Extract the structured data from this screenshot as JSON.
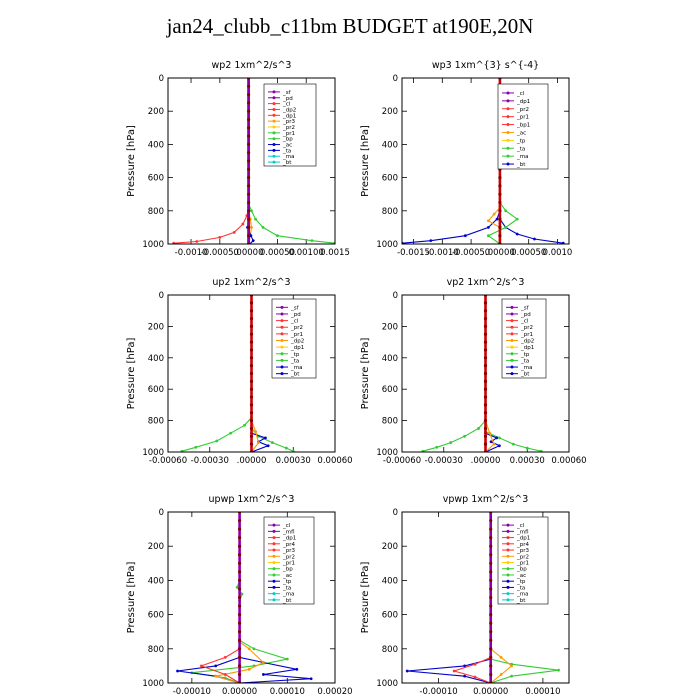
{
  "figure_title": "jan24_clubb_c11bm  BUDGET at190E,20N",
  "chart_data": [
    {
      "type": "line",
      "title": "wp2   1xm^2/s^3",
      "ylabel": "Pressure [hPa]",
      "xlim": [
        -0.0014,
        0.0015
      ],
      "ylim": [
        1000,
        0
      ],
      "xticks": [
        -0.001,
        -0.0005,
        0,
        0.0005,
        0.001,
        0.0015
      ],
      "xtick_labels": [
        "-0.0010",
        "-0.00050",
        ".00000",
        "0.00050",
        "0.00100",
        "0.0015"
      ],
      "yticks": [
        0,
        200,
        400,
        600,
        800,
        1000
      ],
      "legend": [
        "_sf",
        "_pd",
        "_cl",
        "_dp2",
        "_dp1",
        "_pr3",
        "_pr2",
        "_pr1",
        "_bp",
        "_ac",
        "_ta",
        "_ma",
        "_bt"
      ],
      "series": [
        {
          "name": "_bp",
          "color": "#33cc33",
          "x": [
            0,
            0,
            5e-05,
            0.00012,
            0.00025,
            0.0005,
            0.0011,
            0.0015
          ],
          "y": [
            0,
            760,
            800,
            850,
            900,
            950,
            980,
            995
          ]
        },
        {
          "name": "_dp1",
          "color": "#ff3333",
          "x": [
            0,
            0,
            -3e-05,
            -0.0001,
            -0.00025,
            -0.0005,
            -0.0009,
            -0.0013
          ],
          "y": [
            0,
            780,
            830,
            880,
            930,
            960,
            985,
            995
          ]
        },
        {
          "name": "_pr1",
          "color": "#ff9900",
          "x": [
            0,
            0,
            3e-05,
            5e-05,
            3e-05,
            0
          ],
          "y": [
            0,
            800,
            850,
            900,
            950,
            1000
          ]
        },
        {
          "name": "_ac",
          "color": "#0000cc",
          "x": [
            0,
            0,
            -2e-05,
            4e-05,
            8e-05,
            2e-05
          ],
          "y": [
            0,
            850,
            900,
            950,
            980,
            1000
          ]
        },
        {
          "name": "_cl",
          "color": "#cc0000",
          "x": [
            0,
            0
          ],
          "y": [
            0,
            1000
          ]
        },
        {
          "name": "_sf",
          "color": "#8800aa",
          "x": [
            0,
            0
          ],
          "y": [
            0,
            1000
          ]
        }
      ]
    },
    {
      "type": "line",
      "title": "wp3   1xm^{3} s^{-4}",
      "ylabel": "Pressure [hPa]",
      "xlim": [
        -0.0017,
        0.0012
      ],
      "ylim": [
        1000,
        0
      ],
      "xticks": [
        -0.0015,
        -0.001,
        -0.0005,
        0,
        0.0005,
        0.001
      ],
      "xtick_labels": [
        "-0.0015",
        "-0.0010",
        "-0.00050",
        ".00000",
        "0.00050",
        "0.0010"
      ],
      "yticks": [
        0,
        200,
        400,
        600,
        800,
        1000
      ],
      "legend": [
        "_cl",
        "_dp1",
        "_pr2",
        "_pr1",
        "_bp1",
        "_ac",
        "_tp",
        "_ta",
        "_ma",
        "_bt"
      ],
      "series": [
        {
          "name": "_ta",
          "color": "#0000cc",
          "x": [
            0,
            0,
            -5e-05,
            -0.0002,
            -0.0006,
            -0.0012,
            -0.0017
          ],
          "y": [
            0,
            800,
            850,
            900,
            950,
            980,
            995
          ]
        },
        {
          "name": "_tp",
          "color": "#0000cc",
          "x": [
            0,
            0,
            0.0001,
            0.0003,
            0.0006,
            0.0011
          ],
          "y": [
            0,
            850,
            900,
            940,
            970,
            995
          ]
        },
        {
          "name": "_ac",
          "color": "#33cc33",
          "x": [
            0,
            0,
            0.0001,
            0.0003,
            0.0001,
            -0.0002,
            0
          ],
          "y": [
            0,
            750,
            800,
            850,
            900,
            950,
            1000
          ]
        },
        {
          "name": "_pr1",
          "color": "#ff9900",
          "x": [
            0,
            0,
            -0.0001,
            -0.0002,
            0,
            0
          ],
          "y": [
            0,
            780,
            820,
            860,
            900,
            1000
          ]
        },
        {
          "name": "_cl",
          "color": "#cc0000",
          "x": [
            0,
            0
          ],
          "y": [
            0,
            1000
          ]
        }
      ]
    },
    {
      "type": "line",
      "title": "up2   1xm^2/s^3",
      "ylabel": "Pressure [hPa]",
      "xlim": [
        -0.0006,
        0.0006
      ],
      "ylim": [
        1000,
        0
      ],
      "xticks": [
        -0.0006,
        -0.0003,
        0,
        0.0003,
        0.0006
      ],
      "xtick_labels": [
        "-0.00060",
        "-0.00030",
        ".00000",
        "0.00030",
        "0.00060"
      ],
      "yticks": [
        0,
        200,
        400,
        600,
        800,
        1000
      ],
      "legend": [
        "_sf",
        "_pd",
        "_cl",
        "_pr2",
        "_pr1",
        "_dp2",
        "_dp1",
        "_tp",
        "_ta",
        "_ma",
        "_bt"
      ],
      "series": [
        {
          "name": "_dp1",
          "color": "#33cc33",
          "x": [
            0,
            0,
            -5e-05,
            -0.00015,
            -0.00025,
            -0.0004,
            -0.0005
          ],
          "y": [
            0,
            780,
            830,
            880,
            930,
            970,
            995
          ]
        },
        {
          "name": "_pr1",
          "color": "#33cc33",
          "x": [
            0,
            0,
            5e-05,
            0.00015,
            0.00025,
            0.0003
          ],
          "y": [
            0,
            850,
            900,
            940,
            975,
            995
          ]
        },
        {
          "name": "_tp",
          "color": "#0000cc",
          "x": [
            0,
            0,
            0.0001,
            5e-05,
            0.00012,
            0
          ],
          "y": [
            0,
            880,
            910,
            935,
            960,
            1000
          ]
        },
        {
          "name": "_pr2",
          "color": "#ff9900",
          "x": [
            0,
            0,
            3e-05,
            5e-05,
            0
          ],
          "y": [
            0,
            800,
            870,
            940,
            1000
          ]
        },
        {
          "name": "_cl",
          "color": "#cc0000",
          "x": [
            0,
            0
          ],
          "y": [
            0,
            1000
          ]
        }
      ]
    },
    {
      "type": "line",
      "title": "vp2   1xm^2/s^3",
      "ylabel": "Pressure [hPa]",
      "xlim": [
        -0.0006,
        0.0006
      ],
      "ylim": [
        1000,
        0
      ],
      "xticks": [
        -0.0006,
        -0.0003,
        0,
        0.0003,
        0.0006
      ],
      "xtick_labels": [
        "-0.00060",
        "-0.00030",
        ".00000",
        "0.00030",
        "0.00060"
      ],
      "yticks": [
        0,
        200,
        400,
        600,
        800,
        1000
      ],
      "legend": [
        "_sf",
        "_pd",
        "_cl",
        "_pr2",
        "_pr1",
        "_dp2",
        "_dp1",
        "_tp",
        "_ta",
        "_ma",
        "_bt"
      ],
      "series": [
        {
          "name": "_dp1",
          "color": "#33cc33",
          "x": [
            0,
            0,
            -5e-05,
            -0.00015,
            -0.00025,
            -0.00035,
            -0.00045
          ],
          "y": [
            0,
            800,
            850,
            900,
            940,
            970,
            995
          ]
        },
        {
          "name": "_pr1",
          "color": "#33cc33",
          "x": [
            0,
            0,
            0.0001,
            0.0002,
            0.0003,
            0.0004
          ],
          "y": [
            0,
            870,
            910,
            950,
            975,
            995
          ]
        },
        {
          "name": "_tp",
          "color": "#0000cc",
          "x": [
            0,
            0,
            8e-05,
            4e-05,
            0.0001,
            0
          ],
          "y": [
            0,
            880,
            910,
            935,
            960,
            1000
          ]
        },
        {
          "name": "_pr2",
          "color": "#ff9900",
          "x": [
            0,
            0,
            3e-05,
            6e-05,
            0
          ],
          "y": [
            0,
            800,
            880,
            950,
            1000
          ]
        },
        {
          "name": "_cl",
          "color": "#cc0000",
          "x": [
            0,
            0
          ],
          "y": [
            0,
            1000
          ]
        }
      ]
    },
    {
      "type": "line",
      "title": "upwp   1xm^2/s^3",
      "ylabel": "Pressure [hPa]",
      "xlim": [
        -0.00015,
        0.0002
      ],
      "ylim": [
        1000,
        0
      ],
      "xticks": [
        -0.0001,
        0,
        0.0001,
        0.0002
      ],
      "xtick_labels": [
        "-0.00010",
        "0.00000",
        "0.00010",
        "0.00020"
      ],
      "yticks": [
        0,
        200,
        400,
        600,
        800,
        1000
      ],
      "legend": [
        "_cl",
        "_mfl",
        "_dp1",
        "_pr4",
        "_pr3",
        "_pr2",
        "_pr1",
        "_bp",
        "_ac",
        "_tp",
        "_ta",
        "_ma",
        "_bt"
      ],
      "series": [
        {
          "name": "_ac",
          "color": "#33cc33",
          "x": [
            0,
            0,
            3e-05,
            0.0001,
            3e-05,
            -0.0001,
            -3e-05,
            0
          ],
          "y": [
            0,
            750,
            800,
            860,
            900,
            940,
            970,
            1000
          ]
        },
        {
          "name": "_ta",
          "color": "#0000cc",
          "x": [
            0,
            0,
            5e-05,
            0.00012,
            5e-05,
            0.00015,
            0
          ],
          "y": [
            0,
            850,
            880,
            920,
            950,
            975,
            1000
          ]
        },
        {
          "name": "_tp",
          "color": "#0000cc",
          "x": [
            0,
            0,
            -5e-05,
            -0.00013,
            -5e-05,
            0
          ],
          "y": [
            0,
            850,
            900,
            930,
            960,
            1000
          ]
        },
        {
          "name": "_pr1",
          "color": "#ff9900",
          "x": [
            0,
            0,
            2e-05,
            5e-05,
            2e-05,
            -5e-05,
            0
          ],
          "y": [
            0,
            760,
            800,
            880,
            920,
            960,
            1000
          ]
        },
        {
          "name": "_dp1",
          "color": "#ff3333",
          "x": [
            0,
            0,
            -3e-05,
            -8e-05,
            -3e-05,
            0
          ],
          "y": [
            0,
            800,
            850,
            900,
            950,
            1000
          ]
        },
        {
          "name": "_bp",
          "color": "#33cc33",
          "x": [
            0,
            -5e-06,
            5e-06,
            0
          ],
          "y": [
            400,
            440,
            480,
            520
          ]
        },
        {
          "name": "_cl",
          "color": "#8800aa",
          "x": [
            0,
            0
          ],
          "y": [
            0,
            1000
          ]
        }
      ]
    },
    {
      "type": "line",
      "title": "vpwp   1xm^2/s^3",
      "ylabel": "Pressure [hPa]",
      "xlim": [
        -0.00017,
        0.00015
      ],
      "ylim": [
        1000,
        0
      ],
      "xticks": [
        -0.0001,
        0,
        0.0001
      ],
      "xtick_labels": [
        "-0.00010",
        "0.00000",
        "0.00010"
      ],
      "yticks": [
        0,
        200,
        400,
        600,
        800,
        1000
      ],
      "legend": [
        "_cl",
        "_mfl",
        "_dp1",
        "_pr4",
        "_pr3",
        "_pr2",
        "_pr1",
        "_bp",
        "_ac",
        "_tp",
        "_ta",
        "_ma",
        "_bt"
      ],
      "series": [
        {
          "name": "_ac",
          "color": "#33cc33",
          "x": [
            0,
            0,
            4e-05,
            0.00013,
            4e-05,
            0
          ],
          "y": [
            0,
            860,
            890,
            925,
            960,
            1000
          ]
        },
        {
          "name": "_ta",
          "color": "#0000cc",
          "x": [
            0,
            0,
            -5e-05,
            -0.00016,
            -5e-05,
            0
          ],
          "y": [
            0,
            860,
            900,
            930,
            960,
            1000
          ]
        },
        {
          "name": "_dp1",
          "color": "#ff3333",
          "x": [
            0,
            0,
            -3e-05,
            -7e-05,
            -3e-05,
            0
          ],
          "y": [
            0,
            850,
            890,
            930,
            965,
            1000
          ]
        },
        {
          "name": "_pr1",
          "color": "#ff9900",
          "x": [
            0,
            0,
            2e-05,
            4e-05,
            2e-05,
            0
          ],
          "y": [
            0,
            800,
            850,
            900,
            950,
            1000
          ]
        },
        {
          "name": "_cl",
          "color": "#8800aa",
          "x": [
            0,
            0
          ],
          "y": [
            0,
            1000
          ]
        }
      ]
    }
  ]
}
